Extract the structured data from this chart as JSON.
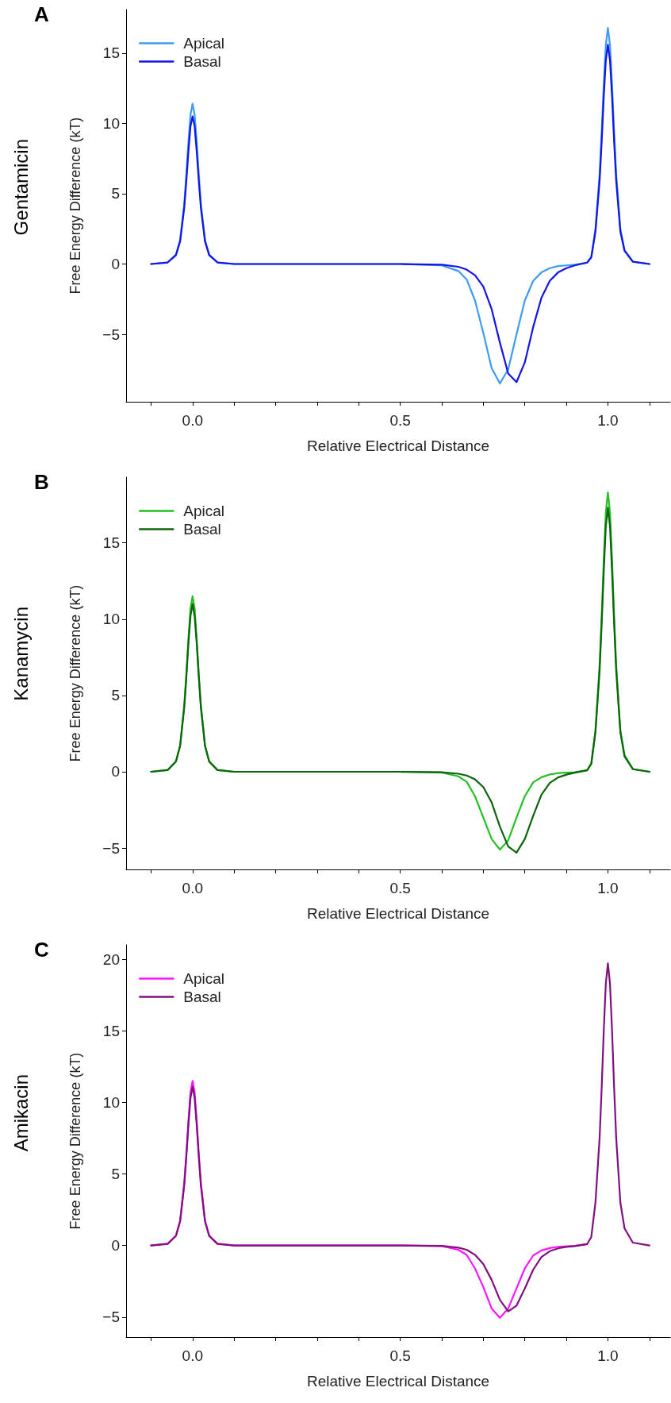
{
  "chart_data": [
    {
      "type": "line",
      "title": "A",
      "subtitle": "Gentamicin",
      "xlabel": "Relative Electrical Distance",
      "ylabel": "Free Energy Difference (kT)",
      "x": [
        -0.1,
        -0.06,
        -0.04,
        -0.03,
        -0.02,
        -0.015,
        -0.01,
        -0.005,
        0,
        0.005,
        0.01,
        0.015,
        0.02,
        0.03,
        0.04,
        0.06,
        0.1,
        0.5,
        0.6,
        0.64,
        0.66,
        0.68,
        0.7,
        0.72,
        0.74,
        0.76,
        0.78,
        0.8,
        0.82,
        0.84,
        0.86,
        0.88,
        0.9,
        0.92,
        0.95,
        0.96,
        0.97,
        0.98,
        0.985,
        0.99,
        0.995,
        1,
        1.005,
        1.01,
        1.015,
        1.02,
        1.03,
        1.04,
        1.06,
        1.1
      ],
      "series": [
        {
          "name": "Apical",
          "color": "#3d9cf2",
          "values": [
            0,
            0.11,
            0.68,
            1.7,
            4.3,
            6.4,
            8.7,
            10.6,
            11.4,
            10.6,
            8.7,
            6.4,
            4.3,
            1.7,
            0.68,
            0.11,
            0,
            0,
            -0.1,
            -0.5,
            -1.1,
            -2.6,
            -4.9,
            -7.4,
            -8.5,
            -7.5,
            -5.0,
            -2.6,
            -1.2,
            -0.6,
            -0.3,
            -0.15,
            -0.1,
            -0.05,
            0.1,
            0.5,
            2.5,
            6.4,
            9.4,
            12.8,
            15.6,
            16.8,
            15.6,
            12.8,
            9.4,
            6.4,
            2.5,
            1.0,
            0.17,
            0
          ]
        },
        {
          "name": "Basal",
          "color": "#1414e6",
          "values": [
            0,
            0.11,
            0.63,
            1.6,
            4.0,
            5.9,
            8.0,
            9.8,
            10.5,
            9.8,
            8.0,
            5.9,
            4.0,
            1.6,
            0.63,
            0.11,
            0,
            0,
            -0.05,
            -0.2,
            -0.4,
            -0.8,
            -1.6,
            -3.2,
            -5.6,
            -7.8,
            -8.4,
            -7.0,
            -4.5,
            -2.4,
            -1.2,
            -0.6,
            -0.3,
            -0.1,
            0.1,
            0.47,
            2.3,
            5.9,
            8.7,
            11.9,
            14.5,
            15.6,
            14.5,
            11.9,
            8.7,
            5.9,
            2.3,
            0.94,
            0.16,
            0
          ]
        }
      ],
      "xlim": [
        -0.16,
        1.15
      ],
      "xticks": [
        {
          "value": -0.1,
          "label": null
        },
        {
          "value": 0,
          "label": "0.0"
        },
        {
          "value": 0.1,
          "label": null
        },
        {
          "value": 0.2,
          "label": null
        },
        {
          "value": 0.3,
          "label": null
        },
        {
          "value": 0.4,
          "label": null
        },
        {
          "value": 0.5,
          "label": "0.5"
        },
        {
          "value": 0.6,
          "label": null
        },
        {
          "value": 0.7,
          "label": null
        },
        {
          "value": 0.8,
          "label": null
        },
        {
          "value": 0.9,
          "label": null
        },
        {
          "value": 1,
          "label": "1.0"
        },
        {
          "value": 1.1,
          "label": null
        }
      ],
      "ylim": [
        -9.8,
        18.1
      ],
      "yticks": [
        -5,
        0,
        5,
        10,
        15
      ],
      "grid": false,
      "legend": "top left",
      "marker": "none",
      "line_style": "solid"
    },
    {
      "type": "line",
      "title": "B",
      "subtitle": "Kanamycin",
      "xlabel": "Relative Electrical Distance",
      "ylabel": "Free Energy Difference (kT)",
      "x": [
        -0.1,
        -0.06,
        -0.04,
        -0.03,
        -0.02,
        -0.015,
        -0.01,
        -0.005,
        0,
        0.005,
        0.01,
        0.015,
        0.02,
        0.03,
        0.04,
        0.06,
        0.1,
        0.5,
        0.6,
        0.64,
        0.66,
        0.68,
        0.7,
        0.72,
        0.74,
        0.76,
        0.78,
        0.8,
        0.82,
        0.84,
        0.86,
        0.88,
        0.9,
        0.92,
        0.95,
        0.96,
        0.97,
        0.98,
        0.985,
        0.99,
        0.995,
        1,
        1.005,
        1.01,
        1.015,
        1.02,
        1.03,
        1.04,
        1.06,
        1.1
      ],
      "series": [
        {
          "name": "Apical",
          "color": "#26bf26",
          "values": [
            0,
            0.12,
            0.69,
            1.7,
            4.4,
            6.4,
            8.7,
            10.7,
            11.5,
            10.7,
            8.7,
            6.4,
            4.4,
            1.7,
            0.69,
            0.12,
            0,
            0,
            -0.05,
            -0.3,
            -0.66,
            -1.6,
            -3.0,
            -4.4,
            -5.1,
            -4.5,
            -3.0,
            -1.6,
            -0.7,
            -0.36,
            -0.18,
            -0.09,
            -0.06,
            -0.03,
            0.1,
            0.55,
            2.7,
            7.0,
            10.2,
            13.9,
            17.0,
            18.3,
            17.0,
            13.9,
            10.2,
            7.0,
            2.7,
            1.1,
            0.18,
            0
          ]
        },
        {
          "name": "Basal",
          "color": "#0b650b",
          "values": [
            0,
            0.11,
            0.66,
            1.7,
            4.2,
            6.2,
            8.4,
            10.2,
            11.0,
            10.2,
            8.4,
            6.2,
            4.2,
            1.7,
            0.66,
            0.11,
            0,
            0,
            -0.03,
            -0.13,
            -0.25,
            -0.5,
            -1.0,
            -2.0,
            -3.6,
            -4.9,
            -5.3,
            -4.4,
            -2.9,
            -1.5,
            -0.74,
            -0.37,
            -0.19,
            -0.06,
            0.1,
            0.52,
            2.6,
            6.6,
            9.7,
            13.1,
            16.1,
            17.3,
            16.1,
            13.1,
            9.7,
            6.6,
            2.6,
            1.0,
            0.17,
            0
          ]
        }
      ],
      "xlim": [
        -0.16,
        1.15
      ],
      "xticks": [
        {
          "value": -0.1,
          "label": null
        },
        {
          "value": 0,
          "label": "0.0"
        },
        {
          "value": 0.1,
          "label": null
        },
        {
          "value": 0.2,
          "label": null
        },
        {
          "value": 0.3,
          "label": null
        },
        {
          "value": 0.4,
          "label": null
        },
        {
          "value": 0.5,
          "label": "0.5"
        },
        {
          "value": 0.6,
          "label": null
        },
        {
          "value": 0.7,
          "label": null
        },
        {
          "value": 0.8,
          "label": null
        },
        {
          "value": 0.9,
          "label": null
        },
        {
          "value": 1,
          "label": "1.0"
        },
        {
          "value": 1.1,
          "label": null
        }
      ],
      "ylim": [
        -6.4,
        19.3
      ],
      "yticks": [
        -5,
        0,
        5,
        10,
        15
      ],
      "grid": false,
      "legend": "top left",
      "marker": "none",
      "line_style": "solid"
    },
    {
      "type": "line",
      "title": "C",
      "subtitle": "Amikacin",
      "xlabel": "Relative Electrical Distance",
      "ylabel": "Free Energy Difference (kT)",
      "x": [
        -0.1,
        -0.06,
        -0.04,
        -0.03,
        -0.02,
        -0.015,
        -0.01,
        -0.005,
        0,
        0.005,
        0.01,
        0.015,
        0.02,
        0.03,
        0.04,
        0.06,
        0.1,
        0.5,
        0.6,
        0.64,
        0.66,
        0.68,
        0.7,
        0.72,
        0.74,
        0.76,
        0.78,
        0.8,
        0.82,
        0.84,
        0.86,
        0.88,
        0.9,
        0.92,
        0.95,
        0.96,
        0.97,
        0.98,
        0.985,
        0.99,
        0.995,
        1,
        1.005,
        1.01,
        1.015,
        1.02,
        1.03,
        1.04,
        1.06,
        1.1
      ],
      "series": [
        {
          "name": "Apical",
          "color": "#ff14ff",
          "values": [
            0,
            0.12,
            0.69,
            1.7,
            4.4,
            6.4,
            8.7,
            10.7,
            11.5,
            10.7,
            8.7,
            6.4,
            4.4,
            1.7,
            0.69,
            0.12,
            0,
            0,
            -0.05,
            -0.3,
            -0.66,
            -1.6,
            -2.9,
            -4.4,
            -5.05,
            -4.4,
            -3.0,
            -1.6,
            -0.7,
            -0.35,
            -0.18,
            -0.09,
            -0.06,
            -0.03,
            0.1,
            null,
            null,
            null,
            null,
            null,
            null,
            null,
            null,
            null,
            null,
            null,
            null,
            null,
            null,
            null
          ]
        },
        {
          "name": "Basal",
          "color": "#80107f",
          "values": [
            0,
            0.11,
            0.67,
            1.7,
            4.2,
            6.2,
            8.4,
            10.3,
            11.1,
            10.3,
            8.4,
            6.2,
            4.2,
            1.7,
            0.67,
            0.11,
            0,
            0,
            -0.03,
            -0.15,
            -0.3,
            -0.65,
            -1.3,
            -2.4,
            -3.8,
            -4.6,
            -4.2,
            -3.0,
            -1.7,
            -0.8,
            -0.4,
            -0.2,
            -0.1,
            -0.04,
            0.1,
            0.59,
            3.0,
            7.5,
            11.0,
            15.0,
            18.3,
            19.7,
            18.3,
            15.0,
            11.0,
            7.5,
            3.0,
            1.2,
            0.2,
            0
          ]
        }
      ],
      "xlim": [
        -0.16,
        1.15
      ],
      "xticks": [
        {
          "value": -0.1,
          "label": null
        },
        {
          "value": 0,
          "label": "0.0"
        },
        {
          "value": 0.1,
          "label": null
        },
        {
          "value": 0.2,
          "label": null
        },
        {
          "value": 0.3,
          "label": null
        },
        {
          "value": 0.4,
          "label": null
        },
        {
          "value": 0.5,
          "label": "0.5"
        },
        {
          "value": 0.6,
          "label": null
        },
        {
          "value": 0.7,
          "label": null
        },
        {
          "value": 0.8,
          "label": null
        },
        {
          "value": 0.9,
          "label": null
        },
        {
          "value": 1,
          "label": "1.0"
        },
        {
          "value": 1.1,
          "label": null
        }
      ],
      "ylim": [
        -6.4,
        21.0
      ],
      "yticks": [
        -5,
        0,
        5,
        10,
        15,
        20
      ],
      "grid": false,
      "legend": "top left",
      "marker": "none",
      "line_style": "solid"
    }
  ]
}
